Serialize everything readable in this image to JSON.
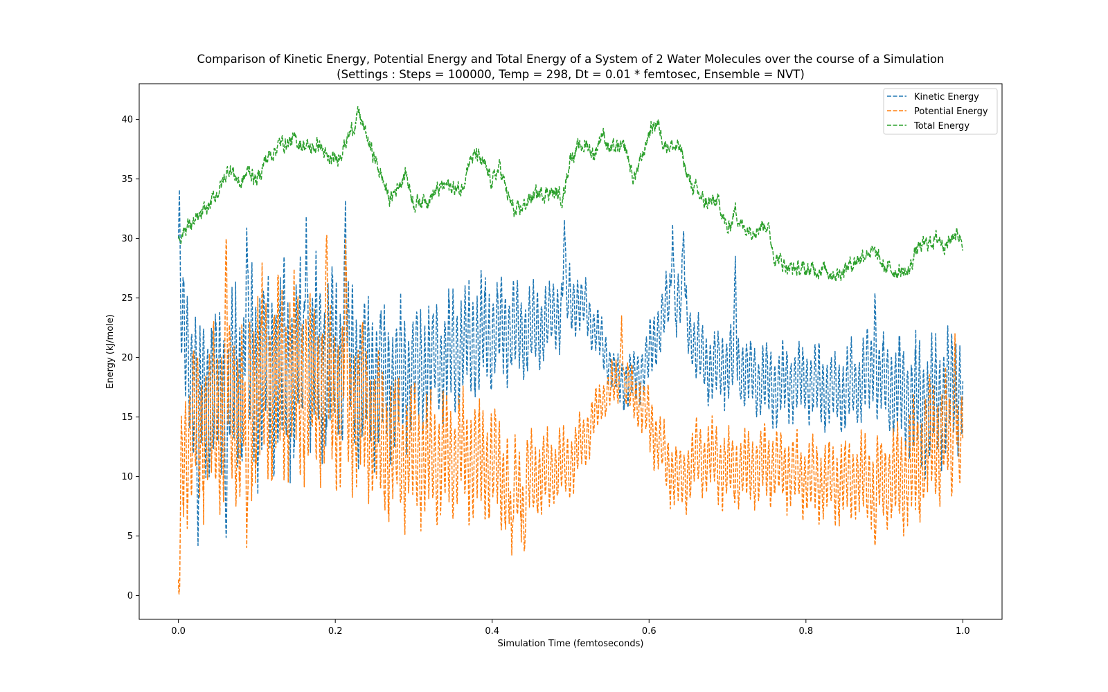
{
  "chart_data": {
    "type": "line",
    "title": "Comparison of Kinetic Energy, Potential Energy and Total Energy of a System of 2 Water Molecules over the course of a Simulation",
    "subtitle": "(Settings : Steps = 100000, Temp = 298, Dt = 0.01 * femtosec, Ensemble = NVT)",
    "xlabel": "Simulation Time (femtoseconds)",
    "ylabel": "Energy (kJ/mole)",
    "xlim": [
      -0.05,
      1.05
    ],
    "ylim": [
      -2,
      43
    ],
    "xticks": [
      "0.0",
      "0.2",
      "0.4",
      "0.6",
      "0.8",
      "1.0"
    ],
    "yticks": [
      "0",
      "5",
      "10",
      "15",
      "20",
      "25",
      "30",
      "35",
      "40"
    ],
    "legend_position": "top-right",
    "grid": false,
    "line_style": "dashed",
    "series": [
      {
        "name": "Kinetic Energy",
        "color": "#1f77b4",
        "points": [
          [
            0.0,
            30.0
          ],
          [
            0.005,
            22.0
          ],
          [
            0.02,
            18.0
          ],
          [
            0.04,
            17.0
          ],
          [
            0.06,
            17.5
          ],
          [
            0.08,
            18.0
          ],
          [
            0.1,
            19.0
          ],
          [
            0.12,
            19.5
          ],
          [
            0.14,
            19.0
          ],
          [
            0.16,
            19.5
          ],
          [
            0.18,
            20.0
          ],
          [
            0.2,
            19.5
          ],
          [
            0.22,
            19.0
          ],
          [
            0.24,
            18.5
          ],
          [
            0.26,
            18.0
          ],
          [
            0.28,
            18.0
          ],
          [
            0.3,
            19.0
          ],
          [
            0.32,
            19.5
          ],
          [
            0.34,
            20.0
          ],
          [
            0.36,
            21.0
          ],
          [
            0.38,
            21.5
          ],
          [
            0.4,
            22.0
          ],
          [
            0.42,
            22.5
          ],
          [
            0.44,
            22.0
          ],
          [
            0.46,
            22.5
          ],
          [
            0.48,
            23.5
          ],
          [
            0.5,
            25.0
          ],
          [
            0.52,
            24.0
          ],
          [
            0.54,
            21.0
          ],
          [
            0.56,
            18.0
          ],
          [
            0.58,
            18.0
          ],
          [
            0.6,
            20.0
          ],
          [
            0.62,
            24.0
          ],
          [
            0.64,
            25.0
          ],
          [
            0.66,
            20.5
          ],
          [
            0.68,
            19.0
          ],
          [
            0.7,
            19.5
          ],
          [
            0.72,
            19.0
          ],
          [
            0.74,
            18.0
          ],
          [
            0.76,
            17.5
          ],
          [
            0.78,
            18.0
          ],
          [
            0.8,
            18.0
          ],
          [
            0.82,
            17.5
          ],
          [
            0.84,
            17.0
          ],
          [
            0.86,
            17.5
          ],
          [
            0.88,
            18.5
          ],
          [
            0.9,
            18.0
          ],
          [
            0.92,
            17.0
          ],
          [
            0.94,
            16.0
          ],
          [
            0.96,
            16.0
          ],
          [
            0.98,
            17.0
          ],
          [
            1.0,
            18.0
          ]
        ],
        "oscillation_amplitude": [
          [
            0.0,
            6
          ],
          [
            0.05,
            8
          ],
          [
            0.1,
            9
          ],
          [
            0.2,
            8
          ],
          [
            0.3,
            6
          ],
          [
            0.4,
            5
          ],
          [
            0.5,
            3
          ],
          [
            0.55,
            2
          ],
          [
            0.6,
            3
          ],
          [
            0.65,
            3
          ],
          [
            0.7,
            3.5
          ],
          [
            0.8,
            3.5
          ],
          [
            0.9,
            4
          ],
          [
            0.95,
            6
          ],
          [
            1.0,
            5
          ]
        ],
        "peaks": [
          [
            0.025,
            4.2
          ],
          [
            0.061,
            4.5
          ],
          [
            0.087,
            31.3
          ],
          [
            0.163,
            32.5
          ],
          [
            0.213,
            33.7
          ],
          [
            0.492,
            31.8
          ],
          [
            0.63,
            31.2
          ],
          [
            0.644,
            31.1
          ],
          [
            0.71,
            28.5
          ],
          [
            0.888,
            25.6
          ]
        ]
      },
      {
        "name": "Potential Energy",
        "color": "#ff7f0e",
        "points": [
          [
            0.0,
            0.0
          ],
          [
            0.005,
            12.0
          ],
          [
            0.02,
            14.0
          ],
          [
            0.04,
            14.5
          ],
          [
            0.06,
            15.5
          ],
          [
            0.08,
            16.0
          ],
          [
            0.1,
            17.5
          ],
          [
            0.12,
            18.5
          ],
          [
            0.14,
            18.5
          ],
          [
            0.16,
            18.0
          ],
          [
            0.18,
            17.5
          ],
          [
            0.2,
            17.0
          ],
          [
            0.22,
            16.0
          ],
          [
            0.24,
            15.0
          ],
          [
            0.26,
            13.0
          ],
          [
            0.28,
            12.0
          ],
          [
            0.3,
            12.0
          ],
          [
            0.32,
            11.5
          ],
          [
            0.34,
            11.5
          ],
          [
            0.36,
            12.0
          ],
          [
            0.38,
            11.5
          ],
          [
            0.4,
            11.0
          ],
          [
            0.42,
            9.5
          ],
          [
            0.44,
            9.5
          ],
          [
            0.46,
            10.0
          ],
          [
            0.48,
            10.5
          ],
          [
            0.5,
            11.0
          ],
          [
            0.52,
            13.5
          ],
          [
            0.54,
            16.5
          ],
          [
            0.56,
            18.0
          ],
          [
            0.58,
            17.0
          ],
          [
            0.6,
            15.0
          ],
          [
            0.62,
            11.5
          ],
          [
            0.64,
            9.5
          ],
          [
            0.66,
            11.5
          ],
          [
            0.68,
            11.5
          ],
          [
            0.7,
            10.5
          ],
          [
            0.72,
            10.5
          ],
          [
            0.74,
            11.0
          ],
          [
            0.76,
            11.0
          ],
          [
            0.78,
            10.5
          ],
          [
            0.8,
            10.0
          ],
          [
            0.82,
            9.5
          ],
          [
            0.84,
            9.5
          ],
          [
            0.86,
            10.0
          ],
          [
            0.88,
            9.5
          ],
          [
            0.9,
            9.5
          ],
          [
            0.92,
            10.0
          ],
          [
            0.94,
            11.0
          ],
          [
            0.96,
            13.0
          ],
          [
            0.98,
            13.5
          ],
          [
            1.0,
            12.0
          ]
        ],
        "oscillation_amplitude": [
          [
            0.0,
            6
          ],
          [
            0.05,
            8
          ],
          [
            0.1,
            9
          ],
          [
            0.2,
            8
          ],
          [
            0.3,
            6
          ],
          [
            0.4,
            5
          ],
          [
            0.5,
            3
          ],
          [
            0.55,
            2
          ],
          [
            0.6,
            3
          ],
          [
            0.65,
            3
          ],
          [
            0.7,
            3.5
          ],
          [
            0.8,
            3.5
          ],
          [
            0.9,
            4
          ],
          [
            0.95,
            6
          ],
          [
            1.0,
            5
          ]
        ],
        "peaks": [
          [
            0.061,
            30.7
          ],
          [
            0.087,
            3.5
          ],
          [
            0.189,
            30.8
          ],
          [
            0.213,
            30.4
          ],
          [
            0.425,
            3.4
          ],
          [
            0.441,
            3.3
          ],
          [
            0.565,
            23.5
          ],
          [
            0.888,
            4.1
          ],
          [
            0.99,
            22.0
          ]
        ]
      },
      {
        "name": "Total Energy",
        "color": "#2ca02c",
        "points": [
          [
            0.0,
            30.0
          ],
          [
            0.01,
            31.0
          ],
          [
            0.025,
            31.5
          ],
          [
            0.04,
            32.8
          ],
          [
            0.055,
            34.5
          ],
          [
            0.065,
            36.0
          ],
          [
            0.08,
            34.5
          ],
          [
            0.09,
            35.8
          ],
          [
            0.1,
            34.8
          ],
          [
            0.11,
            36.5
          ],
          [
            0.13,
            38.0
          ],
          [
            0.15,
            38.2
          ],
          [
            0.17,
            37.5
          ],
          [
            0.18,
            38.0
          ],
          [
            0.19,
            36.5
          ],
          [
            0.2,
            36.5
          ],
          [
            0.22,
            39.0
          ],
          [
            0.23,
            40.5
          ],
          [
            0.24,
            38.5
          ],
          [
            0.26,
            35.0
          ],
          [
            0.27,
            33.2
          ],
          [
            0.28,
            34.5
          ],
          [
            0.29,
            35.5
          ],
          [
            0.3,
            33.0
          ],
          [
            0.32,
            33.5
          ],
          [
            0.34,
            34.5
          ],
          [
            0.36,
            34.0
          ],
          [
            0.37,
            36.5
          ],
          [
            0.38,
            37.0
          ],
          [
            0.39,
            36.0
          ],
          [
            0.4,
            34.8
          ],
          [
            0.41,
            36.0
          ],
          [
            0.42,
            33.5
          ],
          [
            0.43,
            32.0
          ],
          [
            0.45,
            33.5
          ],
          [
            0.47,
            34.0
          ],
          [
            0.49,
            33.5
          ],
          [
            0.5,
            37.0
          ],
          [
            0.52,
            38.0
          ],
          [
            0.53,
            37.0
          ],
          [
            0.54,
            39.0
          ],
          [
            0.55,
            37.5
          ],
          [
            0.57,
            37.5
          ],
          [
            0.58,
            35.0
          ],
          [
            0.59,
            36.5
          ],
          [
            0.6,
            39.0
          ],
          [
            0.61,
            39.8
          ],
          [
            0.62,
            38.0
          ],
          [
            0.64,
            37.5
          ],
          [
            0.65,
            35.0
          ],
          [
            0.66,
            34.0
          ],
          [
            0.67,
            33.0
          ],
          [
            0.69,
            33.0
          ],
          [
            0.7,
            30.5
          ],
          [
            0.71,
            32.5
          ],
          [
            0.72,
            30.8
          ],
          [
            0.74,
            31.0
          ],
          [
            0.75,
            31.3
          ],
          [
            0.76,
            28.5
          ],
          [
            0.78,
            27.5
          ],
          [
            0.8,
            27.3
          ],
          [
            0.82,
            27.5
          ],
          [
            0.84,
            27.0
          ],
          [
            0.86,
            28.0
          ],
          [
            0.88,
            29.0
          ],
          [
            0.89,
            28.5
          ],
          [
            0.9,
            27.5
          ],
          [
            0.92,
            27.3
          ],
          [
            0.93,
            27.0
          ],
          [
            0.94,
            29.0
          ],
          [
            0.96,
            29.8
          ],
          [
            0.97,
            30.0
          ],
          [
            0.98,
            29.5
          ],
          [
            0.99,
            30.5
          ],
          [
            1.0,
            30.0
          ]
        ]
      }
    ]
  }
}
